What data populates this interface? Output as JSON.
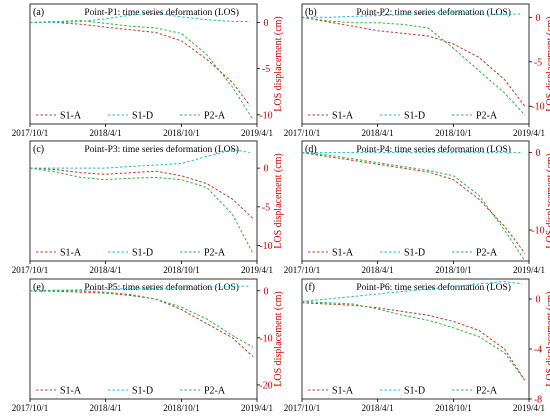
{
  "figure": {
    "ylabel": "LOS displacement (cm)",
    "xtick_labels": [
      "2017/10/1",
      "2018/4/1",
      "2018/10/1",
      "2019/4/1"
    ],
    "legend_labels": [
      "S1-A",
      "S1-D",
      "P2-A"
    ],
    "colors": {
      "S1-A": "#c0392b",
      "S1-D": "#1fbcd2",
      "P2-A": "#2db53a",
      "ytick": "#cc0000",
      "axis": "#000000"
    }
  },
  "chart_data": [
    {
      "type": "line",
      "panel": "(a)",
      "title": "Point-P1: time series deformation (LOS)",
      "xlim": [
        "2017-10-01",
        "2019-04-01"
      ],
      "ylim": [
        -11,
        2
      ],
      "yticks": [
        0,
        -5,
        -10
      ],
      "series": [
        {
          "name": "S1-A",
          "x": [
            "2017-10-01",
            "2017-12-01",
            "2018-02-01",
            "2018-04-01",
            "2018-06-01",
            "2018-08-01",
            "2018-10-01",
            "2018-12-01",
            "2019-02-01",
            "2019-03-15"
          ],
          "y": [
            0,
            0,
            -0.2,
            -0.5,
            -0.8,
            -1.1,
            -2.0,
            -4.0,
            -6.5,
            -9.0
          ]
        },
        {
          "name": "S1-D",
          "x": [
            "2017-10-01",
            "2017-12-01",
            "2018-02-01",
            "2018-04-01",
            "2018-06-01",
            "2018-08-01",
            "2018-10-01",
            "2018-12-01",
            "2019-02-01",
            "2019-03-15"
          ],
          "y": [
            0,
            0,
            0.1,
            0.4,
            0.8,
            1.0,
            0.6,
            0.3,
            0.1,
            0.1
          ]
        },
        {
          "name": "P2-A",
          "x": [
            "2017-10-01",
            "2017-12-01",
            "2018-02-01",
            "2018-04-01",
            "2018-06-01",
            "2018-08-01",
            "2018-10-01",
            "2018-12-01",
            "2019-02-01",
            "2019-03-22"
          ],
          "y": [
            0,
            0.1,
            0.2,
            -0.1,
            -0.4,
            -0.6,
            -1.2,
            -3.5,
            -7.0,
            -10.5
          ]
        }
      ]
    },
    {
      "type": "line",
      "panel": "(b)",
      "title": "Point-P2: time series deformation (LOS)",
      "xlim": [
        "2017-10-01",
        "2019-04-01"
      ],
      "ylim": [
        -12,
        1.5
      ],
      "yticks": [
        0,
        -5,
        -10
      ],
      "series": [
        {
          "name": "S1-A",
          "x": [
            "2017-10-01",
            "2017-12-01",
            "2018-02-01",
            "2018-04-01",
            "2018-06-01",
            "2018-08-01",
            "2018-10-01",
            "2018-12-01",
            "2019-02-01",
            "2019-03-22"
          ],
          "y": [
            0,
            -0.5,
            -1.0,
            -1.5,
            -1.8,
            -2.1,
            -3.0,
            -4.5,
            -7.0,
            -10.0
          ]
        },
        {
          "name": "S1-D",
          "x": [
            "2017-10-01",
            "2017-12-01",
            "2018-02-01",
            "2018-04-01",
            "2018-06-01",
            "2018-08-01",
            "2018-10-01",
            "2018-12-01",
            "2019-02-01",
            "2019-03-15"
          ],
          "y": [
            0,
            0,
            0.1,
            0.2,
            0.3,
            0.5,
            0.6,
            0.4,
            0.3,
            0.4
          ]
        },
        {
          "name": "P2-A",
          "x": [
            "2017-10-01",
            "2017-12-01",
            "2018-02-01",
            "2018-04-01",
            "2018-06-01",
            "2018-08-01",
            "2018-10-01",
            "2018-12-01",
            "2019-02-01",
            "2019-03-22"
          ],
          "y": [
            0,
            -0.4,
            -0.6,
            -0.6,
            -0.8,
            -1.2,
            -3.5,
            -6.0,
            -8.5,
            -11.0
          ]
        }
      ]
    },
    {
      "type": "line",
      "panel": "(c)",
      "title": "Point-P3: time series deformation (LOS)",
      "xlim": [
        "2017-10-01",
        "2019-04-01"
      ],
      "ylim": [
        -12,
        3.5
      ],
      "yticks": [
        0,
        -5,
        -10
      ],
      "series": [
        {
          "name": "S1-A",
          "x": [
            "2017-10-01",
            "2017-12-01",
            "2018-02-01",
            "2018-04-01",
            "2018-06-01",
            "2018-08-01",
            "2018-10-01",
            "2018-12-01",
            "2019-02-01",
            "2019-03-22"
          ],
          "y": [
            0,
            -0.2,
            -0.6,
            -0.8,
            -0.6,
            -0.4,
            -1.0,
            -2.0,
            -4.0,
            -6.5
          ]
        },
        {
          "name": "S1-D",
          "x": [
            "2017-10-01",
            "2017-12-01",
            "2018-02-01",
            "2018-04-01",
            "2018-06-01",
            "2018-08-01",
            "2018-10-01",
            "2018-12-01",
            "2019-02-01",
            "2019-03-15"
          ],
          "y": [
            0,
            0,
            0,
            0,
            0.2,
            0.4,
            0.6,
            1.5,
            2.4,
            2.0
          ]
        },
        {
          "name": "P2-A",
          "x": [
            "2017-10-01",
            "2017-12-01",
            "2018-02-01",
            "2018-04-01",
            "2018-06-01",
            "2018-08-01",
            "2018-10-01",
            "2018-12-01",
            "2019-02-01",
            "2019-03-22"
          ],
          "y": [
            0,
            -0.5,
            -1.2,
            -1.5,
            -1.3,
            -1.2,
            -1.5,
            -2.5,
            -6.0,
            -11.0
          ]
        }
      ]
    },
    {
      "type": "line",
      "panel": "(d)",
      "title": "Point-P4: time series deformation (LOS)",
      "xlim": [
        "2017-10-01",
        "2019-04-01"
      ],
      "ylim": [
        -14,
        1.5
      ],
      "yticks": [
        0,
        -10
      ],
      "series": [
        {
          "name": "S1-A",
          "x": [
            "2017-10-01",
            "2017-12-01",
            "2018-02-01",
            "2018-04-01",
            "2018-06-01",
            "2018-08-01",
            "2018-10-01",
            "2018-12-01",
            "2019-02-01",
            "2019-03-22"
          ],
          "y": [
            0,
            -0.5,
            -1.0,
            -1.5,
            -2.0,
            -2.5,
            -3.5,
            -6.0,
            -9.5,
            -13.0
          ]
        },
        {
          "name": "S1-D",
          "x": [
            "2017-10-01",
            "2017-12-01",
            "2018-02-01",
            "2018-04-01",
            "2018-06-01",
            "2018-08-01",
            "2018-10-01",
            "2018-12-01",
            "2019-02-01",
            "2019-03-15"
          ],
          "y": [
            0,
            0,
            0,
            0,
            0,
            0,
            0,
            0,
            0,
            0
          ]
        },
        {
          "name": "P2-A",
          "x": [
            "2017-10-01",
            "2017-12-01",
            "2018-02-01",
            "2018-04-01",
            "2018-06-01",
            "2018-08-01",
            "2018-10-01",
            "2018-12-01",
            "2019-02-01",
            "2019-03-22"
          ],
          "y": [
            0,
            -0.3,
            -0.8,
            -1.3,
            -1.8,
            -2.3,
            -3.0,
            -5.5,
            -10.0,
            -14.0
          ]
        }
      ]
    },
    {
      "type": "line",
      "panel": "(e)",
      "title": "Point-P5: time series deformation (LOS)",
      "xlim": [
        "2017-10-01",
        "2019-04-01"
      ],
      "ylim": [
        -23,
        2.5
      ],
      "yticks": [
        0,
        -10,
        -20
      ],
      "series": [
        {
          "name": "S1-A",
          "x": [
            "2017-10-01",
            "2017-12-01",
            "2018-02-01",
            "2018-04-01",
            "2018-06-01",
            "2018-08-01",
            "2018-10-01",
            "2018-12-01",
            "2019-02-01",
            "2019-03-22"
          ],
          "y": [
            0,
            -0.1,
            -0.3,
            -0.5,
            -1.0,
            -1.8,
            -4.0,
            -7.0,
            -10.0,
            -14.0
          ]
        },
        {
          "name": "S1-D",
          "x": [
            "2017-10-01",
            "2017-12-01",
            "2018-02-01",
            "2018-04-01",
            "2018-06-01",
            "2018-08-01",
            "2018-10-01",
            "2018-12-01",
            "2019-02-01",
            "2019-03-15"
          ],
          "y": [
            0,
            0.1,
            0.2,
            0.3,
            0.5,
            0.5,
            0.6,
            0.7,
            0.9,
            1.0
          ]
        },
        {
          "name": "P2-A",
          "x": [
            "2017-10-01",
            "2017-12-01",
            "2018-02-01",
            "2018-04-01",
            "2018-06-01",
            "2018-08-01",
            "2018-10-01",
            "2018-12-01",
            "2019-02-01",
            "2019-03-22"
          ],
          "y": [
            0,
            0.1,
            0,
            -0.3,
            -0.8,
            -1.8,
            -3.5,
            -6.0,
            -9.5,
            -12.0
          ]
        }
      ]
    },
    {
      "type": "line",
      "panel": "(f)",
      "title": "Point-P6: time series deformation (LOS)",
      "xlim": [
        "2017-10-01",
        "2019-04-01"
      ],
      "ylim": [
        -8,
        1.6
      ],
      "yticks": [
        0,
        -4,
        -8
      ],
      "series": [
        {
          "name": "S1-A",
          "x": [
            "2017-10-01",
            "2017-12-01",
            "2018-02-01",
            "2018-04-01",
            "2018-06-01",
            "2018-08-01",
            "2018-10-01",
            "2018-12-01",
            "2019-02-01",
            "2019-03-22"
          ],
          "y": [
            -0.3,
            -0.4,
            -0.5,
            -0.7,
            -1.0,
            -1.3,
            -1.8,
            -2.5,
            -4.0,
            -6.5
          ]
        },
        {
          "name": "S1-D",
          "x": [
            "2017-10-01",
            "2017-12-01",
            "2018-02-01",
            "2018-04-01",
            "2018-06-01",
            "2018-08-01",
            "2018-10-01",
            "2018-12-01",
            "2019-02-01",
            "2019-03-15"
          ],
          "y": [
            -0.2,
            0,
            0.2,
            0.4,
            0.6,
            0.8,
            1.0,
            1.2,
            1.4,
            1.2
          ]
        },
        {
          "name": "P2-A",
          "x": [
            "2017-10-01",
            "2017-12-01",
            "2018-02-01",
            "2018-04-01",
            "2018-06-01",
            "2018-08-01",
            "2018-10-01",
            "2018-12-01",
            "2019-02-01",
            "2019-03-22"
          ],
          "y": [
            -0.2,
            -0.3,
            -0.4,
            -0.8,
            -1.3,
            -1.7,
            -2.3,
            -3.0,
            -4.3,
            -6.5
          ]
        }
      ]
    }
  ]
}
